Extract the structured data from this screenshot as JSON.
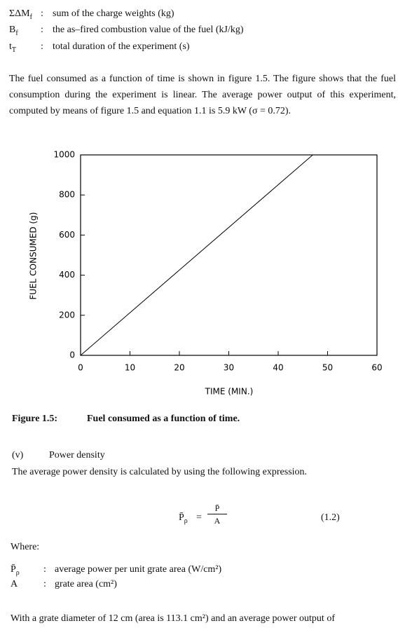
{
  "definitions": [
    {
      "symbol": "ΣΔM",
      "sub": "f",
      "colon": ":",
      "text": "sum of the charge weights (kg)"
    },
    {
      "symbol": "B",
      "sub": "f",
      "colon": ":",
      "text": "the as–fired combustion value of the fuel (kJ/kg)"
    },
    {
      "symbol": "t",
      "sub": "T",
      "colon": ":",
      "text": "total duration of the experiment (s)"
    }
  ],
  "paragraph": "The fuel consumed as a function of time is shown in figure 1.5. The figure shows that the fuel consumption during the experiment is linear. The average power output of this experiment, computed by means of figure 1.5 and equation 1.1 is 5.9 kW (σ = 0.72).",
  "chart_data": {
    "type": "line",
    "x": [
      0,
      47
    ],
    "values": [
      0,
      1000
    ],
    "color": "#000000",
    "xlim": [
      0,
      60
    ],
    "ylim": [
      0,
      1000
    ],
    "xticks": [
      0,
      10,
      20,
      30,
      40,
      50,
      60
    ],
    "yticks": [
      0,
      200,
      400,
      600,
      800,
      1000
    ],
    "x_label": "TIME (MIN.)",
    "y_label": "FUEL CONSUMED (g)"
  },
  "caption": {
    "label": "Figure 1.5:",
    "text": "Fuel consumed as a function of time."
  },
  "section": {
    "number": "(v)",
    "title": "Power density"
  },
  "intro": "The average power density is calculated by using the following expression.",
  "equation": {
    "lhs": "P̄",
    "lhs_sub": "ρ",
    "equals": "=",
    "numerator": "P̄",
    "denominator": "A",
    "number": "(1.2)"
  },
  "where": "Where:",
  "where_list": [
    {
      "symbol": "P̄",
      "sub": "ρ",
      "colon": ":",
      "text": "average power per unit grate area (W/cm²)"
    },
    {
      "symbol": "A",
      "sub": "",
      "colon": ":",
      "text": "grate area (cm²)"
    }
  ],
  "last_paragraph": "With a grate diameter of 12 cm (area is 113.1 cm²) and an average power output of"
}
